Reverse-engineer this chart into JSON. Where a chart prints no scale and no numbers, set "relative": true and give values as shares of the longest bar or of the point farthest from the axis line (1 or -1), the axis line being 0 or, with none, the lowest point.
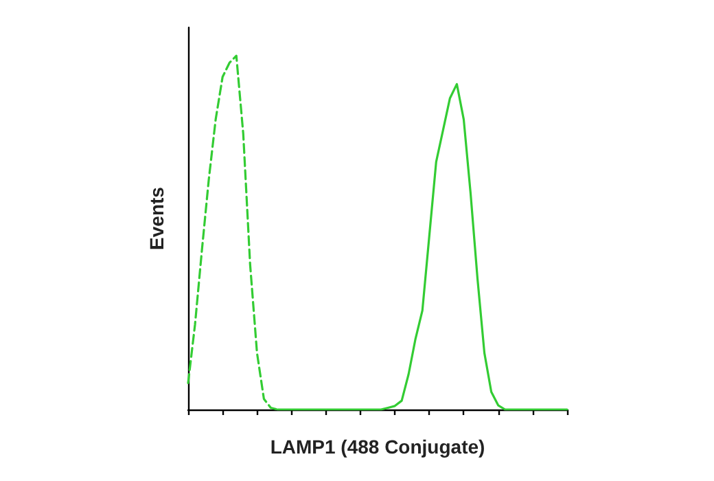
{
  "chart_data": {
    "type": "line",
    "relative": true,
    "xlabel": "LAMP1 (488 Conjugate)",
    "ylabel": "Events",
    "marker": "none",
    "grid": false,
    "categories": [
      null,
      null,
      null,
      null,
      null,
      null,
      null,
      null,
      null,
      null,
      null,
      null,
      null,
      null,
      null,
      null,
      null,
      null,
      null,
      null,
      null,
      null,
      null,
      null,
      null,
      null,
      null,
      null,
      null,
      null,
      null,
      null,
      null,
      null,
      null,
      null,
      null,
      null,
      null,
      null,
      null,
      null,
      null,
      null,
      null,
      null,
      null,
      null,
      null,
      null,
      null,
      null,
      null,
      null,
      null,
      null
    ],
    "series": [
      {
        "color": "#33cc33",
        "line_style": "dashed",
        "values": [
          0.075,
          0.24,
          0.45,
          0.65,
          0.82,
          0.94,
          0.98,
          1,
          0.78,
          0.41,
          0.16,
          0.03,
          0.005,
          0,
          null,
          null,
          null,
          null,
          null,
          null,
          null,
          null,
          null,
          null,
          null,
          null,
          null,
          null,
          null,
          null,
          null,
          null,
          null,
          null,
          null,
          null,
          null,
          null,
          null,
          null,
          null,
          null,
          null,
          null,
          null,
          null,
          null,
          null,
          null,
          null,
          null,
          null,
          null,
          null,
          null,
          null
        ]
      },
      {
        "color": "#33cc33",
        "line_style": "solid",
        "values": [
          null,
          null,
          null,
          null,
          null,
          null,
          null,
          null,
          null,
          null,
          null,
          null,
          null,
          0,
          0,
          0,
          0,
          0,
          0,
          0,
          0,
          0,
          0,
          0,
          0,
          0,
          0,
          0,
          0,
          0.005,
          0.01,
          0.025,
          0.1,
          0.2,
          0.28,
          0.49,
          0.7,
          0.79,
          0.88,
          0.92,
          0.82,
          0.61,
          0.37,
          0.16,
          0.05,
          0.012,
          0,
          0,
          0,
          0,
          0,
          0,
          0,
          0,
          0,
          0
        ]
      }
    ]
  }
}
